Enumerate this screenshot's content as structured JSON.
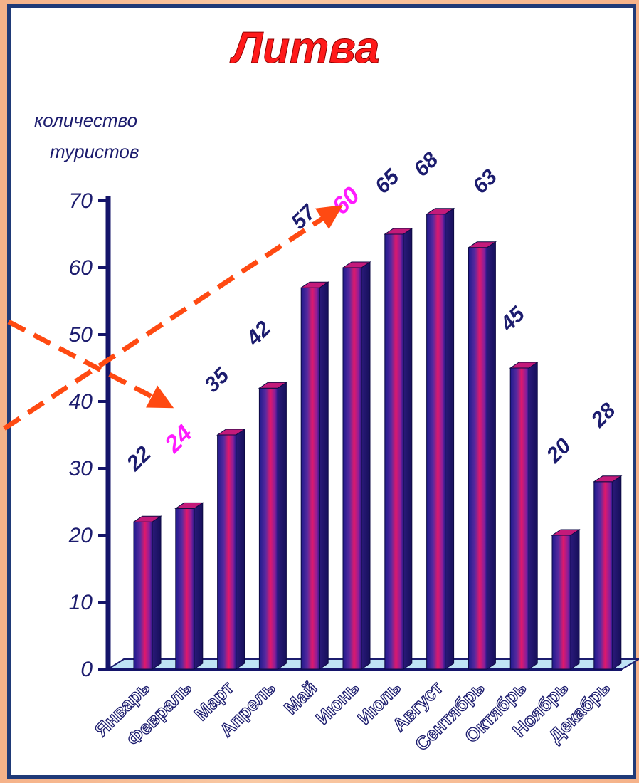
{
  "chart_data": {
    "type": "bar",
    "title": "Литва",
    "ylabel_line1": "количество",
    "ylabel_line2": "туристов",
    "categories": [
      "Январь",
      "Февраль",
      "Март",
      "Апрель",
      "Май",
      "Июнь",
      "Июль",
      "Август",
      "Сентябрь",
      "Октябрь",
      "Ноябрь",
      "Декабрь"
    ],
    "values": [
      22,
      24,
      35,
      42,
      57,
      60,
      65,
      68,
      63,
      45,
      20,
      28
    ],
    "highlighted": [
      1,
      5
    ],
    "ylim": [
      0,
      70
    ],
    "yticks": [
      0,
      10,
      20,
      30,
      40,
      50,
      60,
      70
    ],
    "grid": false,
    "colors": {
      "title": "#ff1a1a",
      "axis_text": "#1c1c6e",
      "value_label": "#1c1c6e",
      "highlight_label": "#ff1aff",
      "bar_dark": "#1e1a8c",
      "bar_mid": "#7a2aa8",
      "bar_light": "#e0186c",
      "floor": "#bfe3f5",
      "arrow": "#ff4a12"
    }
  }
}
